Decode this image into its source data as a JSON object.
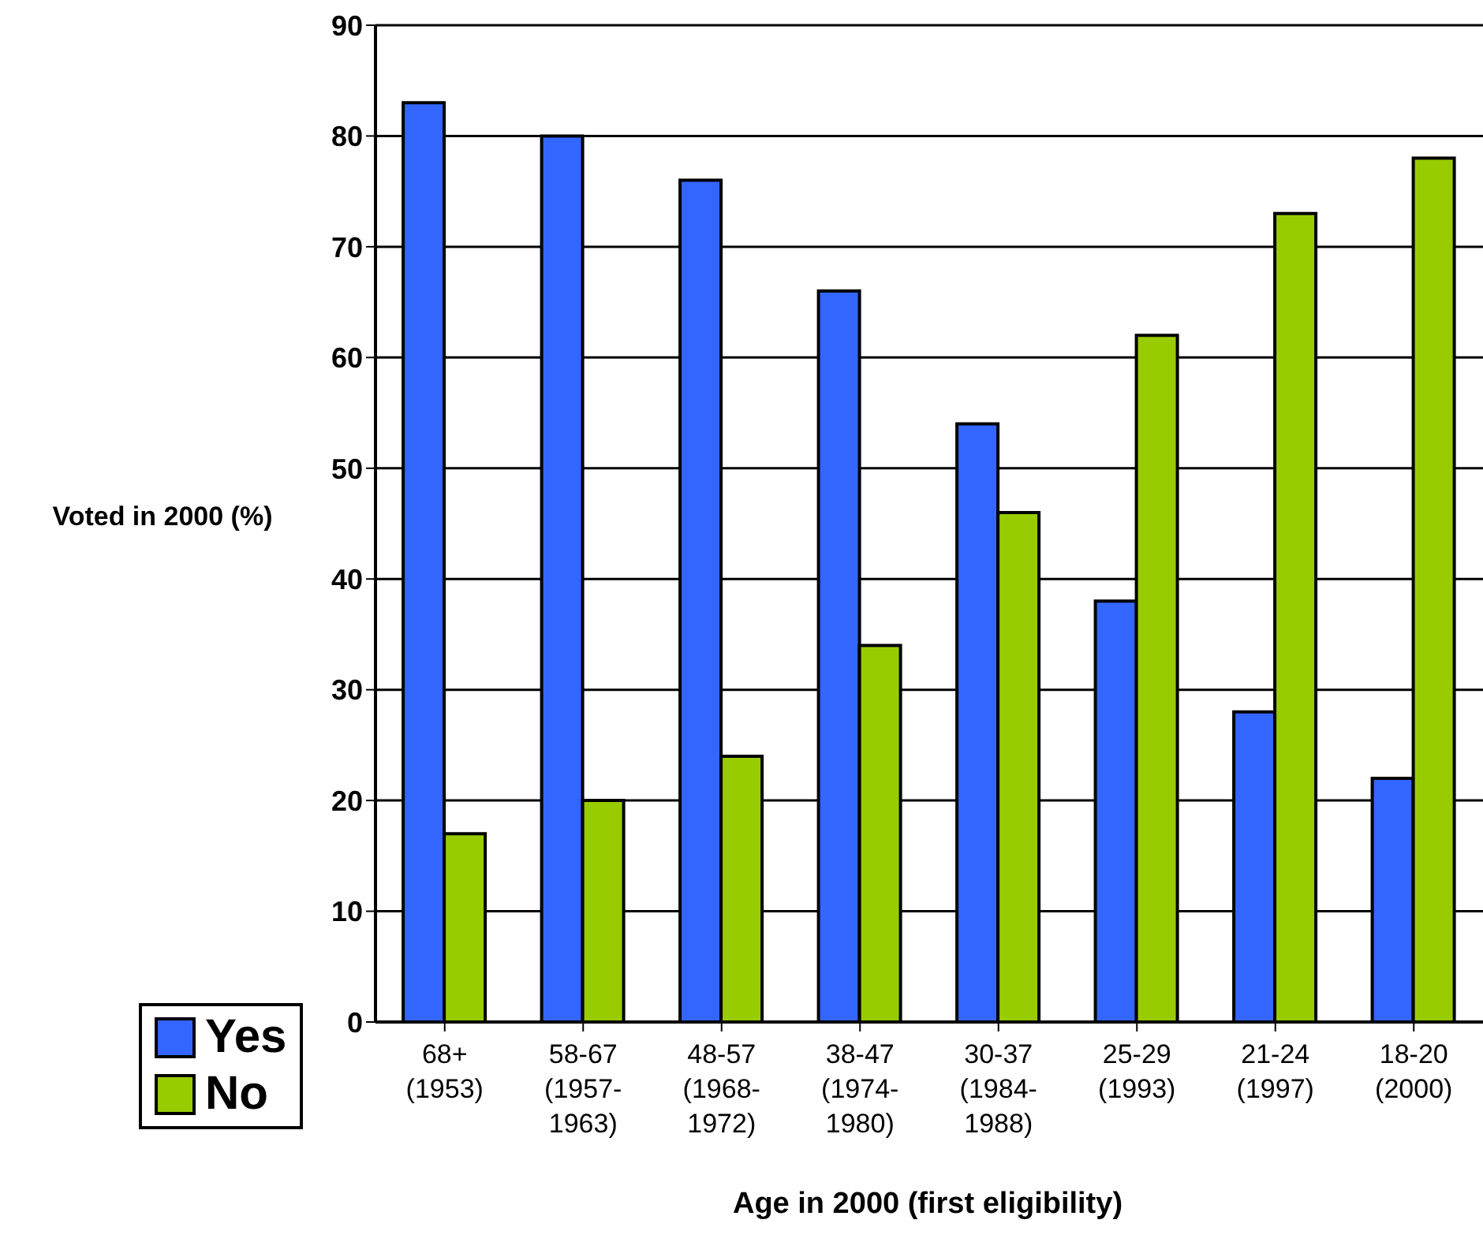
{
  "chart_data": {
    "type": "bar",
    "xlabel": "Age in 2000 (first eligibility)",
    "ylabel": "Voted in 2000 (%)",
    "categories": [
      "68+ (1953)",
      "58-67 (1957-1963)",
      "48-57 (1968-1972)",
      "38-47 (1974-1980)",
      "30-37 (1984-1988)",
      "25-29 (1993)",
      "21-24 (1997)",
      "18-20 (2000)"
    ],
    "series": [
      {
        "name": "Yes",
        "color": "#3366ff",
        "values": [
          83,
          80,
          76,
          66,
          54,
          38,
          28,
          22
        ]
      },
      {
        "name": "No",
        "color": "#99cc00",
        "values": [
          17,
          20,
          24,
          34,
          46,
          62,
          73,
          78
        ]
      }
    ],
    "ylim": [
      0,
      90
    ],
    "yticks": [
      0,
      10,
      20,
      30,
      40,
      50,
      60,
      70,
      80,
      90
    ],
    "grid": "y",
    "legend": "bottom left"
  }
}
